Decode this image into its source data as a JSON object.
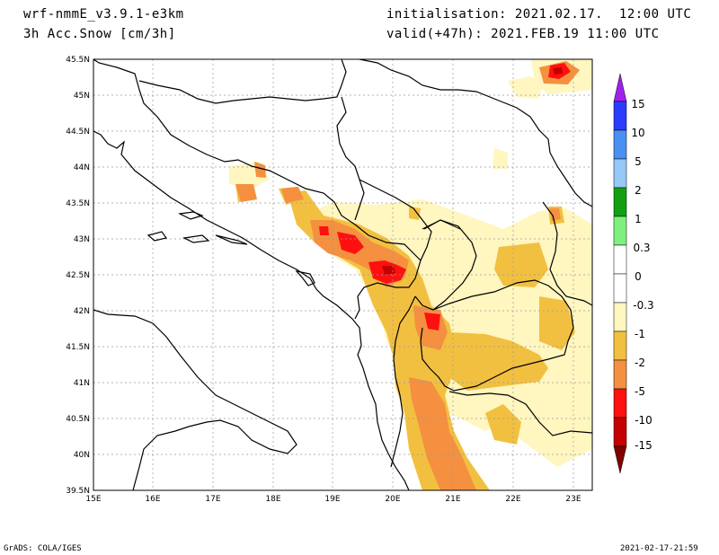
{
  "header": {
    "model": "wrf-nmmE_v3.9.1-e3km",
    "field": "3h Acc.Snow [cm/3h]",
    "init": "initialisation: 2021.02.17.  12:00 UTC",
    "valid": "valid(+47h): 2021.FEB.19 11:00 UTC"
  },
  "footer": {
    "left": "GrADS: COLA/IGES",
    "right": "2021-02-17-21:59"
  },
  "map": {
    "lon_ticks": [
      "15E",
      "16E",
      "17E",
      "18E",
      "19E",
      "20E",
      "21E",
      "22E",
      "23E"
    ],
    "lat_ticks": [
      "39.5N",
      "40N",
      "40.5N",
      "41N",
      "41.5N",
      "42N",
      "42.5N",
      "43N",
      "43.5N",
      "44N",
      "44.5N",
      "45N",
      "45.5N"
    ],
    "lon_range": [
      15,
      23.3
    ],
    "lat_range": [
      39.5,
      45.5
    ]
  },
  "colorbar": {
    "labels": [
      "15",
      "10",
      "5",
      "2",
      "1",
      "0.3",
      "0",
      "-0.3",
      "-1",
      "-2",
      "-5",
      "-10",
      "-15"
    ],
    "colors": [
      "#a020f0",
      "#2b3cff",
      "#4a90f0",
      "#96c8f8",
      "#12a012",
      "#7ef07e",
      "#ffffff",
      "#ffffff",
      "#fff6c0",
      "#f2c040",
      "#f49040",
      "#ff1010",
      "#c40000",
      "#800000"
    ]
  },
  "palette": {
    "light": "#fff6c0",
    "yellow": "#f2c040",
    "orange": "#f49040",
    "red": "#ff1010",
    "darkred": "#c40000"
  }
}
